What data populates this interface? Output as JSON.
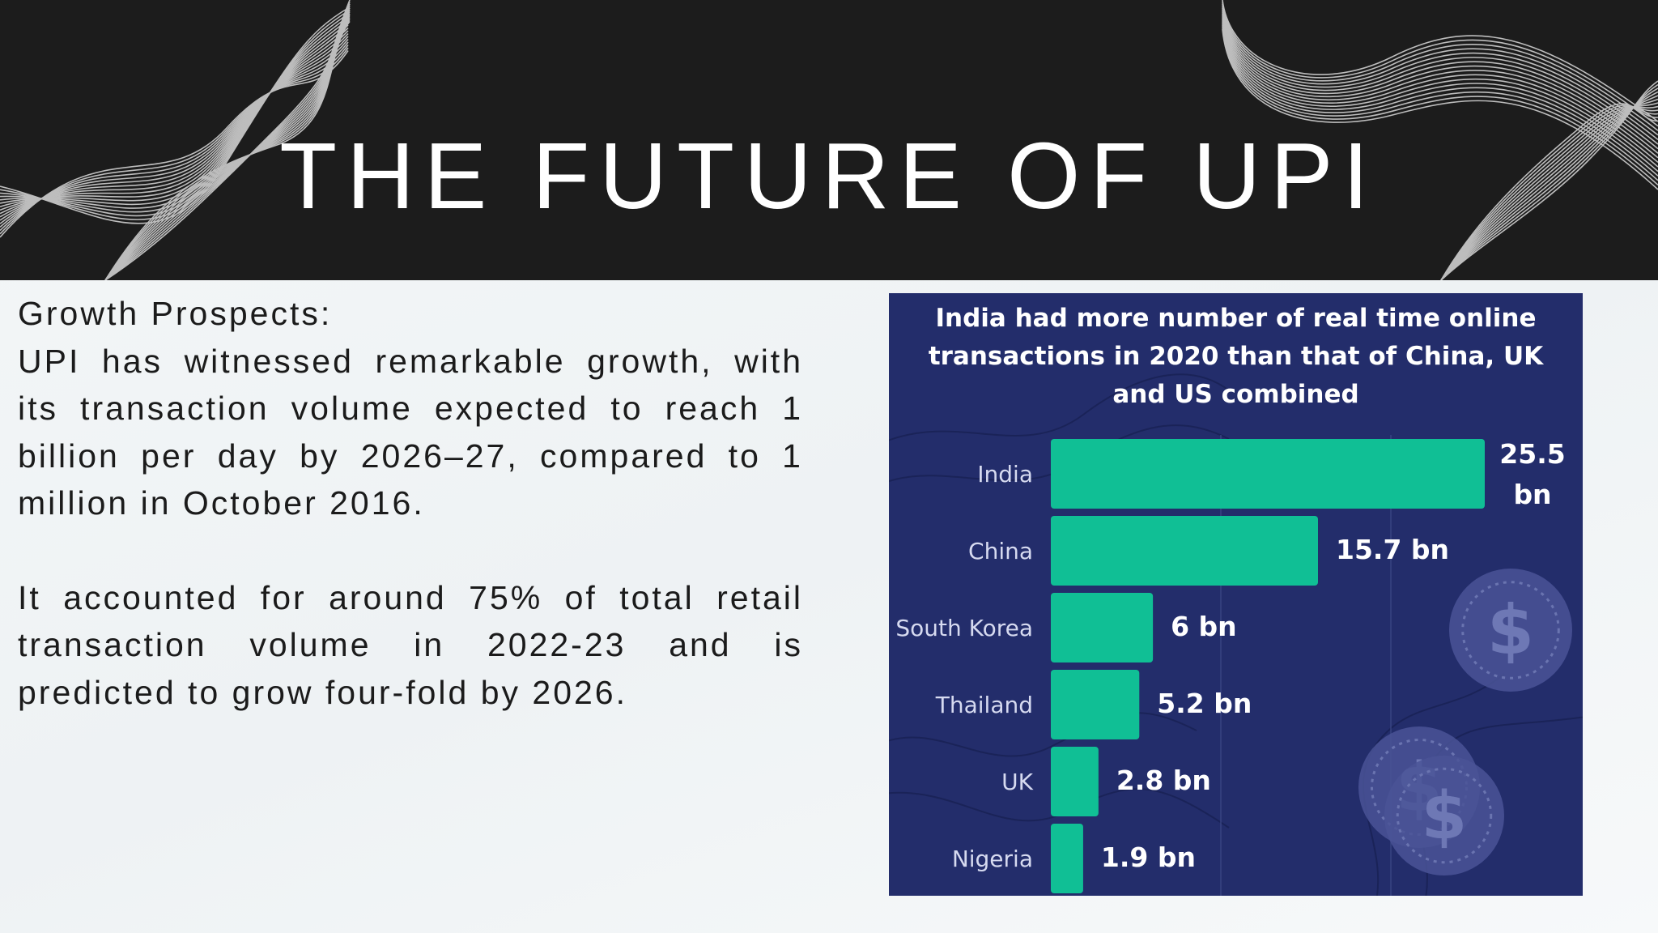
{
  "slide": {
    "title": "THE FUTURE OF UPI",
    "heading": "Growth Prospects:",
    "paragraph1": "UPI has witnessed remarkable growth, with its transaction volume expected to reach 1 billion per day by 2026–27, compared to 1 million in October 2016.",
    "paragraph2": "It accounted for around 75% of total retail transaction volume in 2022-23 and is predicted to grow four-fold by 2026."
  },
  "colors": {
    "header_bg": "#1c1c1c",
    "chart_bg": "#232d6b",
    "bar": "#10bf95",
    "text_dark": "#1b1b1b"
  },
  "chart_data": {
    "type": "bar",
    "orientation": "horizontal",
    "title_lines": [
      "India had more number of real time online",
      "transactions in 2020 than that of China, UK",
      "and US combined"
    ],
    "categories": [
      "India",
      "China",
      "South Korea",
      "Thailand",
      "UK",
      "Nigeria"
    ],
    "values": [
      25.5,
      15.7,
      6,
      5.2,
      2.8,
      1.9
    ],
    "value_labels": [
      "25.5 bn",
      "15.7 bn",
      "6 bn",
      "5.2 bn",
      "2.8 bn",
      "1.9 bn"
    ],
    "unit": "bn",
    "xlim": [
      0,
      25.5
    ],
    "grid": true,
    "xlabel": "",
    "ylabel": ""
  }
}
